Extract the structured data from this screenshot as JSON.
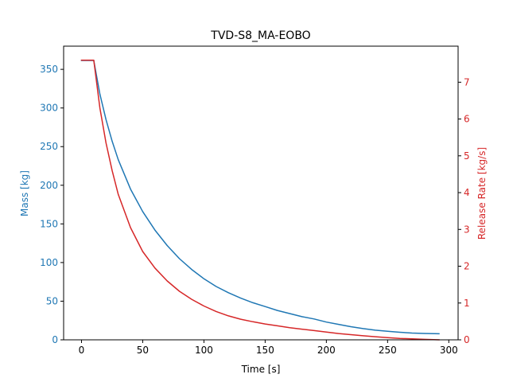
{
  "chart_data": {
    "type": "line",
    "title": "TVD-S8_MA-EOBO",
    "xlabel": "Time [s]",
    "xlim": [
      -14.6,
      307.6
    ],
    "xticks": [
      0,
      50,
      100,
      150,
      200,
      250,
      300
    ],
    "grid": false,
    "legend": "none",
    "axes": {
      "left": {
        "ylabel": "Mass [kg]",
        "ylim": [
          0,
          380
        ],
        "yticks": [
          0,
          50,
          100,
          150,
          200,
          250,
          300,
          350
        ],
        "color": "#1f77b4"
      },
      "right": {
        "ylabel": "Release Rate [kg/s]",
        "ylim": [
          0,
          7.98
        ],
        "yticks": [
          0,
          1,
          2,
          3,
          4,
          5,
          6,
          7
        ],
        "color": "#d62728"
      }
    },
    "series": [
      {
        "axis": "left",
        "color": "#1f77b4",
        "x": [
          0,
          5,
          10,
          15,
          20,
          25,
          30,
          40,
          50,
          60,
          70,
          80,
          90,
          100,
          110,
          120,
          130,
          140,
          150,
          160,
          170,
          180,
          190,
          200,
          210,
          220,
          230,
          240,
          250,
          260,
          270,
          280,
          292
        ],
        "y": [
          361.5,
          361.5,
          361.5,
          318,
          285,
          257,
          233,
          195,
          166,
          142,
          122,
          105,
          91,
          79,
          69,
          61,
          54,
          48,
          43,
          38,
          34,
          30,
          27,
          23,
          20,
          17,
          14.5,
          12.5,
          11,
          9.8,
          8.8,
          8.2,
          7.8
        ]
      },
      {
        "axis": "right",
        "color": "#d62728",
        "x": [
          0,
          5,
          10,
          15,
          20,
          25,
          30,
          40,
          50,
          60,
          70,
          80,
          90,
          100,
          110,
          120,
          130,
          140,
          150,
          160,
          170,
          180,
          190,
          200,
          210,
          220,
          230,
          240,
          250,
          260,
          270,
          280,
          292
        ],
        "y": [
          7.6,
          7.6,
          7.6,
          6.3,
          5.35,
          4.6,
          3.95,
          3.05,
          2.4,
          1.95,
          1.6,
          1.32,
          1.1,
          0.92,
          0.77,
          0.65,
          0.56,
          0.49,
          0.43,
          0.38,
          0.33,
          0.29,
          0.25,
          0.21,
          0.17,
          0.14,
          0.11,
          0.085,
          0.06,
          0.04,
          0.025,
          0.012,
          0.0
        ]
      }
    ]
  }
}
